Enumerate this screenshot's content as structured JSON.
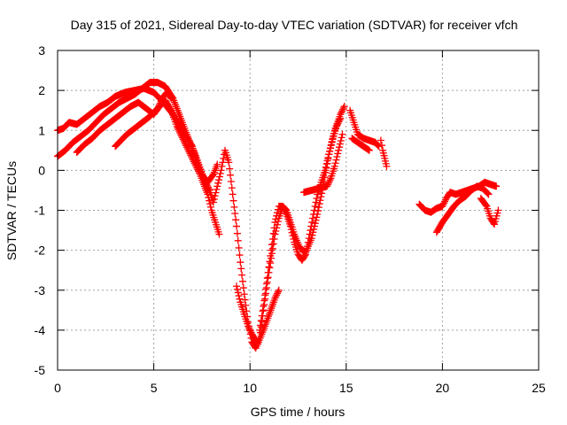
{
  "chart_data": {
    "type": "scatter",
    "title": "Day 315 of 2021, Sidereal Day-to-day VTEC variation (SDTVAR) for receiver vfch",
    "xlabel": "GPS time / hours",
    "ylabel": "SDTVAR / TECUs",
    "xlim": [
      0,
      25
    ],
    "ylim": [
      -5,
      3
    ],
    "x_ticks": [
      "0",
      "5",
      "10",
      "15",
      "20",
      "25"
    ],
    "y_ticks": [
      "-5",
      "-4",
      "-3",
      "-2",
      "-1",
      "0",
      "1",
      "2",
      "3"
    ],
    "grid": true,
    "marker": "+",
    "color": "#ff0000",
    "series": [
      {
        "segments": [
          [
            [
              0.0,
              1.0
            ],
            [
              0.3,
              1.05
            ],
            [
              0.6,
              1.2
            ],
            [
              1.0,
              1.15
            ],
            [
              1.4,
              1.3
            ],
            [
              1.8,
              1.45
            ],
            [
              2.2,
              1.6
            ],
            [
              2.6,
              1.7
            ],
            [
              3.0,
              1.85
            ],
            [
              3.5,
              1.95
            ],
            [
              4.0,
              2.0
            ],
            [
              4.5,
              2.05
            ],
            [
              5.0,
              1.95
            ],
            [
              5.5,
              1.7
            ],
            [
              6.0,
              1.4
            ],
            [
              6.5,
              1.0
            ],
            [
              7.0,
              0.6
            ],
            [
              7.3,
              0.2
            ],
            [
              7.6,
              -0.2
            ],
            [
              7.9,
              -0.5
            ],
            [
              8.1,
              -0.8
            ],
            [
              8.3,
              -0.4
            ],
            [
              8.5,
              0.0
            ],
            [
              8.7,
              0.5
            ],
            [
              8.9,
              0.2
            ],
            [
              9.1,
              -0.6
            ],
            [
              9.3,
              -1.4
            ],
            [
              9.5,
              -2.3
            ],
            [
              9.7,
              -3.1
            ],
            [
              9.9,
              -3.8
            ],
            [
              10.1,
              -4.3
            ],
            [
              10.3,
              -4.45
            ],
            [
              10.5,
              -4.2
            ],
            [
              10.7,
              -3.5
            ],
            [
              10.9,
              -2.8
            ],
            [
              11.1,
              -2.2
            ],
            [
              11.3,
              -1.6
            ],
            [
              11.5,
              -1.2
            ],
            [
              11.7,
              -0.9
            ],
            [
              11.9,
              -1.0
            ],
            [
              12.1,
              -1.3
            ],
            [
              12.3,
              -1.6
            ],
            [
              12.6,
              -1.95
            ],
            [
              12.9,
              -2.05
            ],
            [
              13.2,
              -1.7
            ],
            [
              13.5,
              -1.1
            ],
            [
              13.8,
              -0.4
            ],
            [
              14.1,
              0.4
            ],
            [
              14.4,
              1.0
            ],
            [
              14.7,
              1.4
            ],
            [
              14.9,
              1.6
            ]
          ],
          [
            [
              0.0,
              0.35
            ],
            [
              0.4,
              0.5
            ],
            [
              0.8,
              0.7
            ],
            [
              1.2,
              0.85
            ],
            [
              1.6,
              1.0
            ],
            [
              2.0,
              1.2
            ],
            [
              2.4,
              1.4
            ],
            [
              2.8,
              1.55
            ],
            [
              3.2,
              1.7
            ],
            [
              3.6,
              1.8
            ],
            [
              4.0,
              1.9
            ],
            [
              4.4,
              2.05
            ],
            [
              4.8,
              2.2
            ],
            [
              5.2,
              2.2
            ],
            [
              5.6,
              2.1
            ],
            [
              6.0,
              1.8
            ],
            [
              6.4,
              1.3
            ],
            [
              6.8,
              0.8
            ],
            [
              7.2,
              0.3
            ],
            [
              7.5,
              -0.1
            ],
            [
              7.8,
              -0.3
            ],
            [
              8.1,
              -0.1
            ],
            [
              8.3,
              0.15
            ]
          ],
          [
            [
              1.0,
              0.45
            ],
            [
              1.4,
              0.65
            ],
            [
              1.8,
              0.8
            ],
            [
              2.2,
              1.0
            ],
            [
              2.6,
              1.15
            ],
            [
              3.0,
              1.3
            ],
            [
              3.4,
              1.45
            ],
            [
              3.8,
              1.6
            ],
            [
              4.2,
              1.7
            ],
            [
              4.6,
              1.55
            ],
            [
              5.0,
              1.4
            ],
            [
              5.3,
              1.6
            ],
            [
              5.6,
              1.75
            ],
            [
              5.9,
              1.5
            ],
            [
              6.2,
              1.1
            ],
            [
              6.6,
              0.7
            ],
            [
              7.0,
              0.3
            ],
            [
              7.4,
              -0.1
            ],
            [
              7.8,
              -0.6
            ],
            [
              8.0,
              -1.0
            ],
            [
              8.2,
              -1.3
            ],
            [
              8.4,
              -1.6
            ]
          ],
          [
            [
              3.0,
              0.6
            ],
            [
              3.3,
              0.75
            ],
            [
              3.6,
              0.9
            ],
            [
              4.0,
              1.05
            ],
            [
              4.4,
              1.2
            ],
            [
              4.8,
              1.35
            ],
            [
              5.2,
              1.55
            ],
            [
              5.5,
              1.85
            ],
            [
              5.7,
              1.95
            ],
            [
              5.9,
              1.8
            ]
          ],
          [
            [
              9.3,
              -2.9
            ],
            [
              9.5,
              -3.3
            ],
            [
              9.7,
              -3.6
            ],
            [
              9.9,
              -3.9
            ],
            [
              10.1,
              -4.1
            ],
            [
              10.4,
              -4.35
            ],
            [
              10.7,
              -4.0
            ],
            [
              11.0,
              -3.6
            ],
            [
              11.3,
              -3.2
            ],
            [
              11.5,
              -3.0
            ]
          ],
          [
            [
              10.5,
              -4.0
            ],
            [
              10.7,
              -3.4
            ],
            [
              10.9,
              -2.7
            ],
            [
              11.1,
              -2.0
            ],
            [
              11.3,
              -1.3
            ],
            [
              11.5,
              -0.9
            ],
            [
              11.7,
              -0.9
            ],
            [
              11.9,
              -1.1
            ],
            [
              12.1,
              -1.4
            ],
            [
              12.3,
              -1.8
            ],
            [
              12.5,
              -2.1
            ],
            [
              12.7,
              -2.25
            ],
            [
              12.9,
              -2.1
            ],
            [
              13.1,
              -1.6
            ],
            [
              13.3,
              -1.1
            ],
            [
              13.5,
              -0.6
            ],
            [
              13.7,
              -0.3
            ],
            [
              13.9,
              0.0
            ],
            [
              14.1,
              0.4
            ],
            [
              14.3,
              0.8
            ],
            [
              14.5,
              1.1
            ],
            [
              14.7,
              1.3
            ]
          ],
          [
            [
              12.8,
              -0.55
            ],
            [
              13.2,
              -0.5
            ],
            [
              13.6,
              -0.45
            ],
            [
              14.0,
              -0.4
            ],
            [
              14.2,
              -0.2
            ],
            [
              14.4,
              0.1
            ],
            [
              14.6,
              0.5
            ],
            [
              14.8,
              0.9
            ]
          ],
          [
            [
              15.2,
              1.5
            ],
            [
              15.4,
              1.2
            ],
            [
              15.6,
              0.9
            ],
            [
              15.9,
              0.8
            ],
            [
              16.2,
              0.75
            ],
            [
              16.5,
              0.7
            ],
            [
              16.7,
              0.6
            ]
          ],
          [
            [
              15.3,
              0.8
            ],
            [
              15.6,
              0.7
            ],
            [
              15.9,
              0.6
            ],
            [
              16.2,
              0.5
            ]
          ],
          [
            [
              16.8,
              0.75
            ],
            [
              16.9,
              0.5
            ],
            [
              17.0,
              0.3
            ],
            [
              17.1,
              0.1
            ]
          ],
          [
            [
              18.8,
              -0.85
            ],
            [
              19.1,
              -1.0
            ],
            [
              19.4,
              -1.05
            ],
            [
              19.7,
              -0.95
            ],
            [
              20.0,
              -0.9
            ],
            [
              20.2,
              -0.7
            ],
            [
              20.4,
              -0.55
            ],
            [
              20.7,
              -0.6
            ],
            [
              21.0,
              -0.55
            ],
            [
              21.3,
              -0.5
            ],
            [
              21.6,
              -0.45
            ],
            [
              21.9,
              -0.4
            ],
            [
              22.2,
              -0.3
            ],
            [
              22.5,
              -0.35
            ],
            [
              22.8,
              -0.4
            ]
          ],
          [
            [
              19.7,
              -1.55
            ],
            [
              20.0,
              -1.3
            ],
            [
              20.3,
              -1.1
            ],
            [
              20.6,
              -0.9
            ],
            [
              20.9,
              -0.75
            ],
            [
              21.2,
              -0.65
            ],
            [
              21.5,
              -0.5
            ],
            [
              21.8,
              -0.4
            ],
            [
              22.1,
              -0.45
            ],
            [
              22.4,
              -0.6
            ]
          ],
          [
            [
              22.0,
              -0.7
            ],
            [
              22.3,
              -0.9
            ],
            [
              22.5,
              -1.2
            ],
            [
              22.7,
              -1.35
            ],
            [
              22.9,
              -1.0
            ]
          ]
        ]
      }
    ]
  }
}
